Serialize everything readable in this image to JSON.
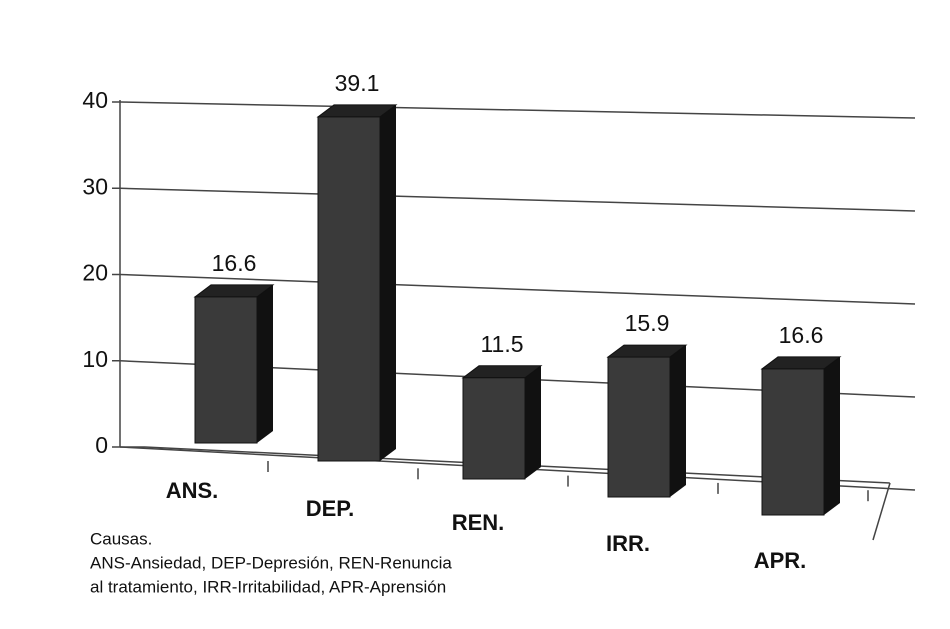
{
  "chart_data": {
    "type": "bar3d",
    "categories": [
      "ANS.",
      "DEP.",
      "REN.",
      "IRR.",
      "APR."
    ],
    "values": [
      16.6,
      39.1,
      11.5,
      15.9,
      16.6
    ],
    "color": "#3a3a3a",
    "ylim": [
      0,
      40
    ],
    "yticks": [
      0,
      10,
      20,
      30,
      40
    ],
    "grid": true,
    "note": [
      "Causas.",
      "ANS-Ansiedad, DEP-Depresión, REN-Renuncia",
      "al tratamiento, IRR-Irritabilidad, APR-Aprensión"
    ]
  }
}
